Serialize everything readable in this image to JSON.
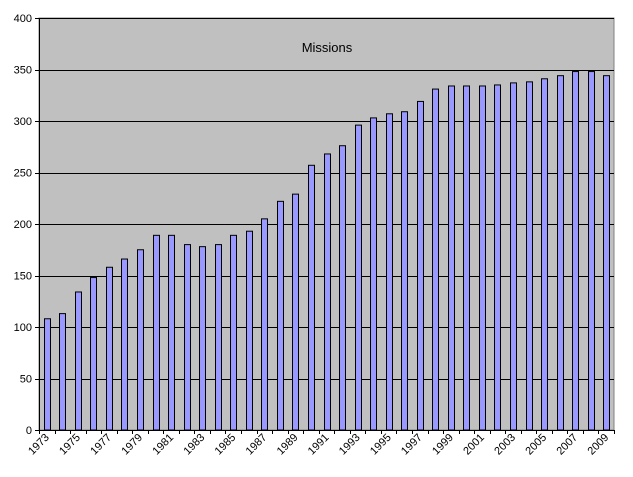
{
  "chart_data": {
    "type": "bar",
    "title": "Missions",
    "xlabel": "",
    "ylabel": "",
    "ylim": [
      0,
      400
    ],
    "yticks": [
      0,
      50,
      100,
      150,
      200,
      250,
      300,
      350,
      400
    ],
    "grid": true,
    "legend": "none",
    "categories": [
      "1973",
      "1974",
      "1975",
      "1976",
      "1977",
      "1978",
      "1979",
      "1980",
      "1981",
      "1982",
      "1983",
      "1984",
      "1985",
      "1986",
      "1987",
      "1988",
      "1989",
      "1990",
      "1991",
      "1992",
      "1993",
      "1994",
      "1995",
      "1996",
      "1997",
      "1998",
      "1999",
      "2000",
      "2001",
      "2002",
      "2003",
      "2004",
      "2005",
      "2006",
      "2007",
      "2008",
      "2009"
    ],
    "xtick_labels": [
      "1973",
      "1975",
      "1977",
      "1979",
      "1981",
      "1983",
      "1985",
      "1987",
      "1989",
      "1991",
      "1993",
      "1995",
      "1997",
      "1999",
      "2001",
      "2003",
      "2005",
      "2007",
      "2009"
    ],
    "values": [
      108,
      113,
      134,
      148,
      158,
      166,
      175,
      189,
      189,
      180,
      178,
      180,
      189,
      193,
      205,
      222,
      229,
      257,
      268,
      276,
      296,
      303,
      307,
      309,
      319,
      331,
      334,
      334,
      334,
      335,
      337,
      338,
      341,
      344,
      348,
      348,
      344
    ],
    "colors": {
      "plot_background": "#c0c0c0",
      "bar_fill": "#9999ff",
      "bar_stroke": "#000000",
      "gridline": "#000000",
      "axis": "#000000"
    }
  }
}
